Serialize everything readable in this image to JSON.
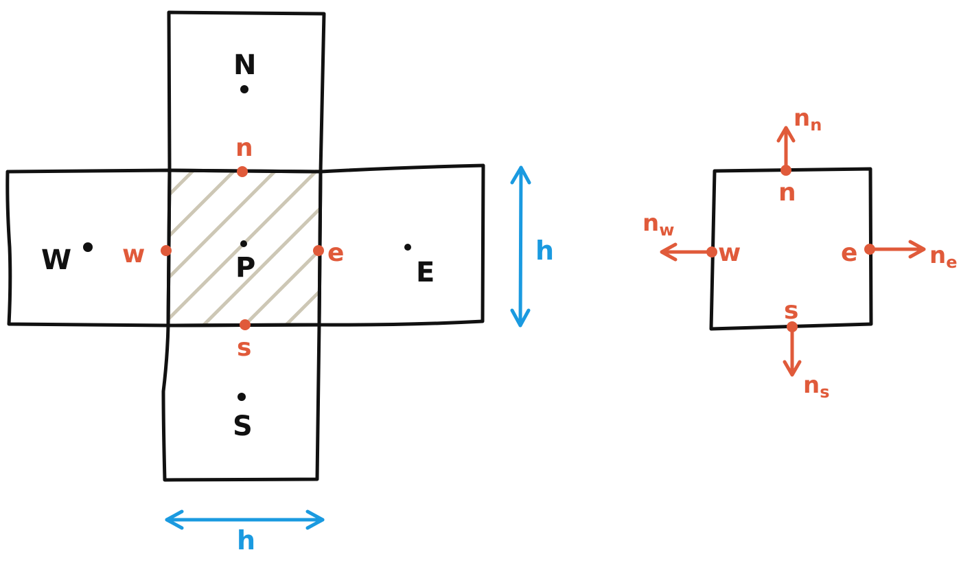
{
  "stencil": {
    "nodes": {
      "north": "N",
      "south": "S",
      "west": "W",
      "east": "E",
      "center": "P"
    },
    "faces": {
      "north": "n",
      "south": "s",
      "west": "w",
      "east": "e"
    },
    "dimensions": {
      "width_label": "h",
      "height_label": "h"
    }
  },
  "control_volume": {
    "faces": {
      "north": "n",
      "south": "s",
      "west": "w",
      "east": "e"
    },
    "normals": {
      "north": {
        "symbol": "n",
        "subscript": "n"
      },
      "south": {
        "symbol": "n",
        "subscript": "s"
      },
      "west": {
        "symbol": "n",
        "subscript": "w"
      },
      "east": {
        "symbol": "n",
        "subscript": "e"
      }
    }
  },
  "colors": {
    "outline": "#111111",
    "face": "#e05a3a",
    "dimension": "#1a9ae0",
    "hatch": "#cdc7b5"
  }
}
